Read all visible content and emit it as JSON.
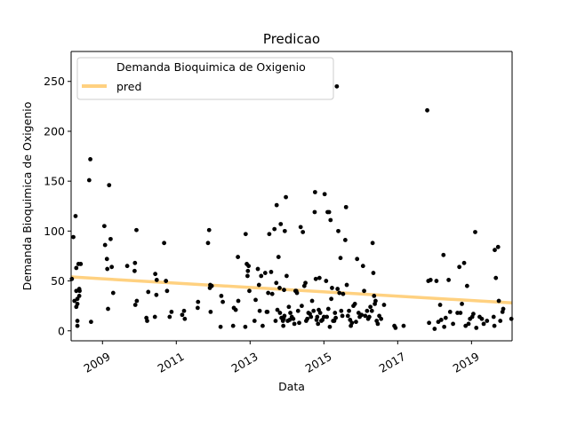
{
  "chart_data": {
    "type": "scatter",
    "title": "Predicao",
    "xlabel": "Data",
    "ylabel": "Demanda Bioquimica de Oxigenio",
    "xlim": [
      2008.15,
      2020.1
    ],
    "ylim": [
      -10,
      280
    ],
    "x_ticks": [
      2009,
      2011,
      2013,
      2015,
      2017,
      2019
    ],
    "x_tick_labels": [
      "2009",
      "2011",
      "2013",
      "2015",
      "2017",
      "2019"
    ],
    "y_ticks": [
      0,
      50,
      100,
      150,
      200,
      250
    ],
    "y_tick_labels": [
      "0",
      "50",
      "100",
      "150",
      "200",
      "250"
    ],
    "grid": false,
    "legend_position": "upper-left",
    "series": [
      {
        "name": "Demanda Bioquimica de Oxigenio",
        "kind": "scatter",
        "color": "#000000",
        "points": [
          [
            2008.17,
            52
          ],
          [
            2008.21,
            94
          ],
          [
            2008.24,
            30
          ],
          [
            2008.27,
            115
          ],
          [
            2008.29,
            40
          ],
          [
            2008.29,
            63
          ],
          [
            2008.29,
            24
          ],
          [
            2008.32,
            10
          ],
          [
            2008.32,
            5
          ],
          [
            2008.32,
            27
          ],
          [
            2008.32,
            32
          ],
          [
            2008.35,
            67
          ],
          [
            2008.37,
            35
          ],
          [
            2008.37,
            42
          ],
          [
            2008.38,
            40
          ],
          [
            2008.41,
            67
          ],
          [
            2008.64,
            151
          ],
          [
            2008.67,
            172
          ],
          [
            2008.69,
            9
          ],
          [
            2009.05,
            105
          ],
          [
            2009.07,
            86
          ],
          [
            2009.12,
            72
          ],
          [
            2009.13,
            62
          ],
          [
            2009.15,
            22
          ],
          [
            2009.18,
            146
          ],
          [
            2009.22,
            92
          ],
          [
            2009.25,
            64
          ],
          [
            2009.29,
            38
          ],
          [
            2009.67,
            65
          ],
          [
            2009.87,
            60
          ],
          [
            2009.88,
            68
          ],
          [
            2009.89,
            26
          ],
          [
            2009.92,
            101
          ],
          [
            2009.93,
            30
          ],
          [
            2010.19,
            13
          ],
          [
            2010.21,
            10
          ],
          [
            2010.24,
            39
          ],
          [
            2010.42,
            14
          ],
          [
            2010.43,
            57
          ],
          [
            2010.46,
            36
          ],
          [
            2010.47,
            51
          ],
          [
            2010.67,
            88
          ],
          [
            2010.72,
            50
          ],
          [
            2010.75,
            40
          ],
          [
            2010.82,
            14
          ],
          [
            2010.87,
            19
          ],
          [
            2011.16,
            16
          ],
          [
            2011.21,
            20
          ],
          [
            2011.23,
            12
          ],
          [
            2011.58,
            23
          ],
          [
            2011.59,
            29
          ],
          [
            2011.86,
            88
          ],
          [
            2011.89,
            101
          ],
          [
            2011.91,
            43
          ],
          [
            2011.92,
            46
          ],
          [
            2011.93,
            19
          ],
          [
            2011.96,
            45
          ],
          [
            2012.2,
            4
          ],
          [
            2012.22,
            35
          ],
          [
            2012.26,
            29
          ],
          [
            2012.54,
            5
          ],
          [
            2012.56,
            23
          ],
          [
            2012.61,
            21
          ],
          [
            2012.67,
            74
          ],
          [
            2012.68,
            30
          ],
          [
            2012.87,
            4
          ],
          [
            2012.88,
            97
          ],
          [
            2012.91,
            67
          ],
          [
            2012.93,
            55
          ],
          [
            2012.94,
            60
          ],
          [
            2012.96,
            65
          ],
          [
            2012.98,
            40
          ],
          [
            2013.12,
            10
          ],
          [
            2013.15,
            31
          ],
          [
            2013.21,
            62
          ],
          [
            2013.24,
            46
          ],
          [
            2013.26,
            20
          ],
          [
            2013.3,
            55
          ],
          [
            2013.34,
            5
          ],
          [
            2013.41,
            58
          ],
          [
            2013.45,
            19
          ],
          [
            2013.47,
            19
          ],
          [
            2013.49,
            38
          ],
          [
            2013.52,
            97
          ],
          [
            2013.57,
            59
          ],
          [
            2013.6,
            37
          ],
          [
            2013.66,
            102
          ],
          [
            2013.69,
            10
          ],
          [
            2013.71,
            48
          ],
          [
            2013.72,
            126
          ],
          [
            2013.74,
            21
          ],
          [
            2013.77,
            74
          ],
          [
            2013.8,
            43
          ],
          [
            2013.81,
            18
          ],
          [
            2013.83,
            107
          ],
          [
            2013.85,
            13
          ],
          [
            2013.89,
            10
          ],
          [
            2013.9,
            5
          ],
          [
            2013.91,
            12
          ],
          [
            2013.92,
            41
          ],
          [
            2013.93,
            15
          ],
          [
            2013.94,
            100
          ],
          [
            2013.97,
            134
          ],
          [
            2013.99,
            55
          ],
          [
            2014.02,
            10
          ],
          [
            2014.05,
            24
          ],
          [
            2014.07,
            11
          ],
          [
            2014.09,
            18
          ],
          [
            2014.13,
            14
          ],
          [
            2014.17,
            12
          ],
          [
            2014.2,
            7
          ],
          [
            2014.23,
            40
          ],
          [
            2014.25,
            40
          ],
          [
            2014.27,
            38
          ],
          [
            2014.3,
            20
          ],
          [
            2014.33,
            8
          ],
          [
            2014.37,
            104
          ],
          [
            2014.4,
            25
          ],
          [
            2014.43,
            99
          ],
          [
            2014.47,
            45
          ],
          [
            2014.5,
            48
          ],
          [
            2014.52,
            10
          ],
          [
            2014.55,
            12
          ],
          [
            2014.58,
            18
          ],
          [
            2014.62,
            17
          ],
          [
            2014.65,
            14
          ],
          [
            2014.68,
            30
          ],
          [
            2014.72,
            20
          ],
          [
            2014.75,
            119
          ],
          [
            2014.76,
            139
          ],
          [
            2014.78,
            52
          ],
          [
            2014.8,
            11
          ],
          [
            2014.82,
            14
          ],
          [
            2014.84,
            7
          ],
          [
            2014.86,
            21
          ],
          [
            2014.88,
            53
          ],
          [
            2014.9,
            18
          ],
          [
            2014.93,
            10
          ],
          [
            2014.96,
            11
          ],
          [
            2015.0,
            14
          ],
          [
            2015.02,
            137
          ],
          [
            2015.06,
            50
          ],
          [
            2015.08,
            14
          ],
          [
            2015.1,
            119
          ],
          [
            2015.12,
            22
          ],
          [
            2015.14,
            119
          ],
          [
            2015.16,
            4
          ],
          [
            2015.18,
            111
          ],
          [
            2015.2,
            32
          ],
          [
            2015.22,
            43
          ],
          [
            2015.25,
            10
          ],
          [
            2015.28,
            10
          ],
          [
            2015.3,
            18
          ],
          [
            2015.32,
            13
          ],
          [
            2015.35,
            245
          ],
          [
            2015.37,
            42
          ],
          [
            2015.39,
            100
          ],
          [
            2015.42,
            38
          ],
          [
            2015.45,
            73
          ],
          [
            2015.47,
            20
          ],
          [
            2015.5,
            15
          ],
          [
            2015.52,
            37
          ],
          [
            2015.58,
            91
          ],
          [
            2015.6,
            124
          ],
          [
            2015.62,
            46
          ],
          [
            2015.65,
            15
          ],
          [
            2015.68,
            20
          ],
          [
            2015.71,
            11
          ],
          [
            2015.73,
            5
          ],
          [
            2015.76,
            8
          ],
          [
            2015.8,
            25
          ],
          [
            2015.84,
            27
          ],
          [
            2015.87,
            9
          ],
          [
            2015.9,
            72
          ],
          [
            2015.94,
            18
          ],
          [
            2015.97,
            14
          ],
          [
            2016.02,
            16
          ],
          [
            2016.06,
            65
          ],
          [
            2016.09,
            40
          ],
          [
            2016.12,
            15
          ],
          [
            2016.17,
            20
          ],
          [
            2016.2,
            12
          ],
          [
            2016.23,
            14
          ],
          [
            2016.26,
            24
          ],
          [
            2016.3,
            20
          ],
          [
            2016.32,
            88
          ],
          [
            2016.34,
            58
          ],
          [
            2016.36,
            35
          ],
          [
            2016.38,
            27
          ],
          [
            2016.4,
            30
          ],
          [
            2016.43,
            10
          ],
          [
            2016.46,
            7
          ],
          [
            2016.5,
            15
          ],
          [
            2016.55,
            12
          ],
          [
            2016.63,
            26
          ],
          [
            2016.91,
            5
          ],
          [
            2016.94,
            3
          ],
          [
            2017.16,
            5
          ],
          [
            2017.8,
            221
          ],
          [
            2017.83,
            50
          ],
          [
            2017.85,
            8
          ],
          [
            2017.89,
            51
          ],
          [
            2018.0,
            2
          ],
          [
            2018.05,
            50
          ],
          [
            2018.1,
            9
          ],
          [
            2018.15,
            26
          ],
          [
            2018.18,
            11
          ],
          [
            2018.24,
            76
          ],
          [
            2018.26,
            4
          ],
          [
            2018.3,
            13
          ],
          [
            2018.38,
            51
          ],
          [
            2018.42,
            19
          ],
          [
            2018.5,
            7
          ],
          [
            2018.62,
            18
          ],
          [
            2018.67,
            64
          ],
          [
            2018.7,
            18
          ],
          [
            2018.74,
            27
          ],
          [
            2018.8,
            68
          ],
          [
            2018.84,
            5
          ],
          [
            2018.88,
            45
          ],
          [
            2018.92,
            7
          ],
          [
            2018.96,
            12
          ],
          [
            2019.02,
            14
          ],
          [
            2019.05,
            17
          ],
          [
            2019.1,
            99
          ],
          [
            2019.13,
            3
          ],
          [
            2019.22,
            14
          ],
          [
            2019.28,
            12
          ],
          [
            2019.33,
            7
          ],
          [
            2019.42,
            10
          ],
          [
            2019.6,
            14
          ],
          [
            2019.62,
            5
          ],
          [
            2019.63,
            81
          ],
          [
            2019.66,
            53
          ],
          [
            2019.72,
            84
          ],
          [
            2019.74,
            30
          ],
          [
            2019.78,
            10
          ],
          [
            2019.84,
            19
          ],
          [
            2019.86,
            22
          ],
          [
            2020.08,
            12
          ]
        ]
      },
      {
        "name": "pred",
        "kind": "line",
        "color": "#ffd180",
        "line": [
          [
            2008.15,
            54
          ],
          [
            2020.1,
            28
          ]
        ]
      }
    ]
  }
}
